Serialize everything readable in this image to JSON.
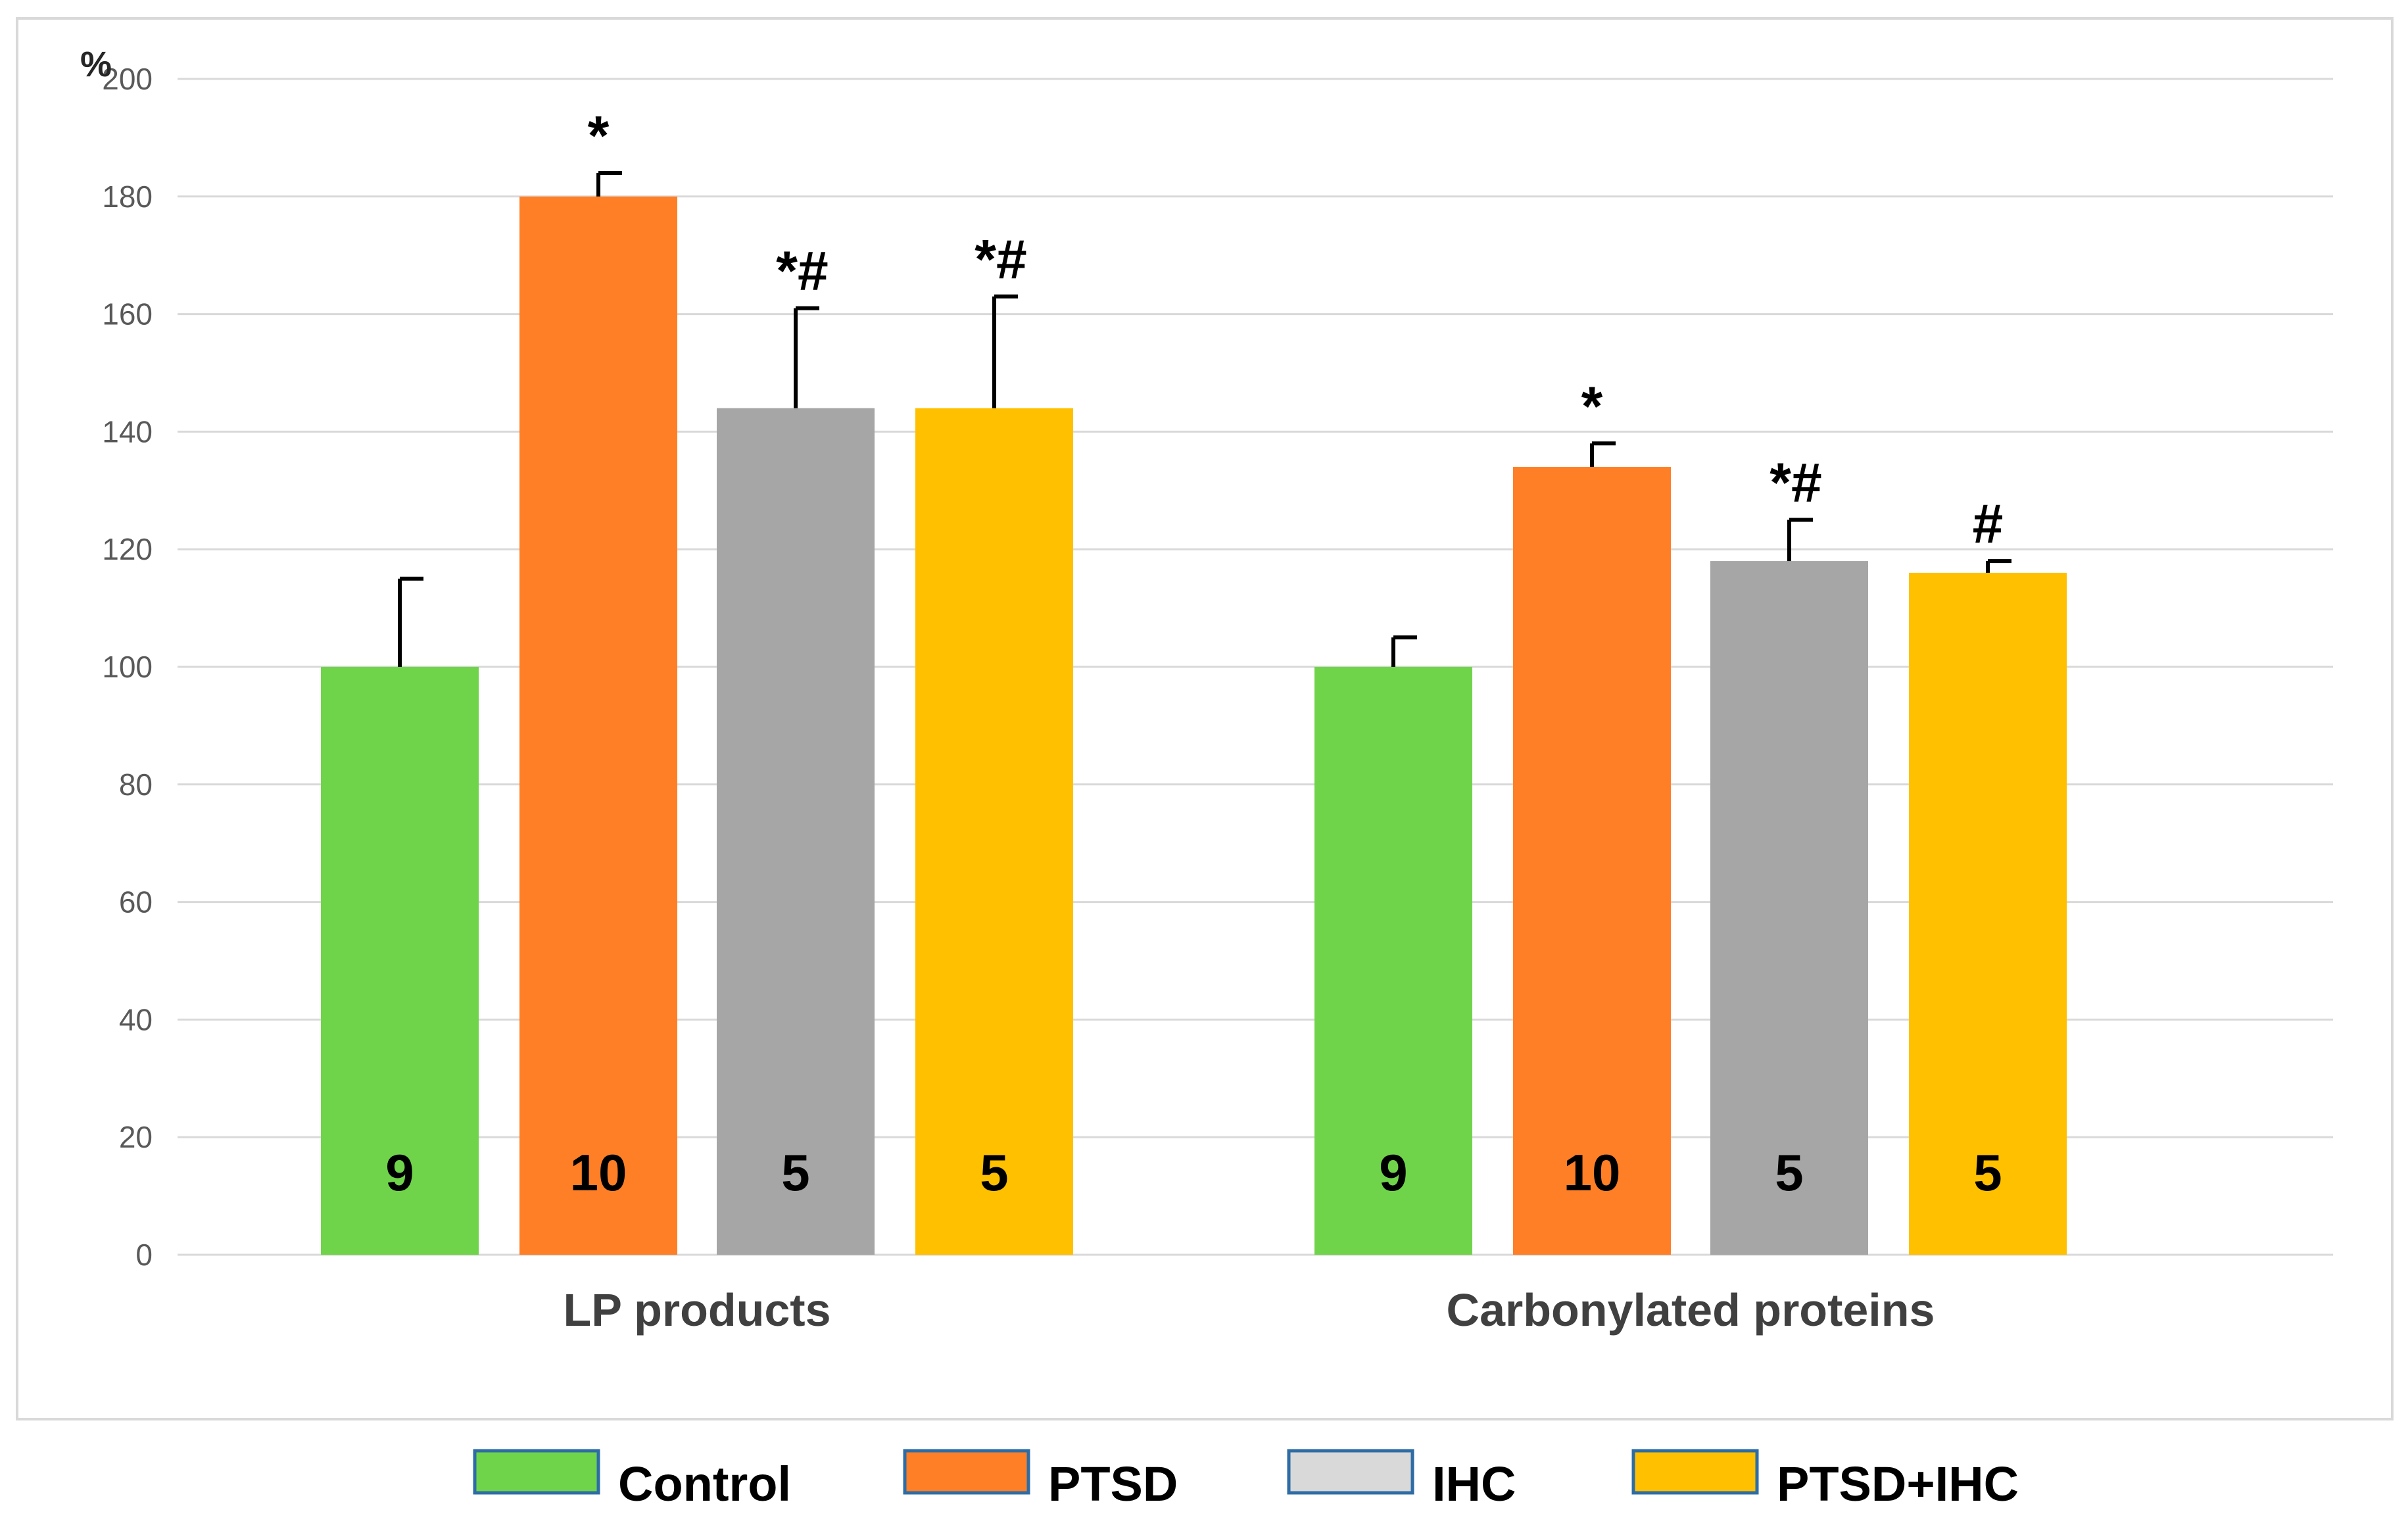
{
  "chart_data": {
    "type": "bar",
    "y_unit_label": "%",
    "categories": [
      "LP products",
      "Carbonylated proteins"
    ],
    "ylim": [
      0,
      200
    ],
    "y_ticks": [
      0,
      20,
      40,
      60,
      80,
      100,
      120,
      140,
      160,
      180,
      200
    ],
    "grid": true,
    "legend_position": "bottom",
    "series": [
      {
        "name": "Control",
        "color": "#70d44b",
        "values": [
          100,
          100
        ],
        "error_plus": [
          15,
          5
        ],
        "n_labels": [
          "9",
          "9"
        ],
        "significance": [
          "",
          ""
        ]
      },
      {
        "name": "PTSD",
        "color": "#ff7f27",
        "values": [
          180,
          134
        ],
        "error_plus": [
          4,
          4
        ],
        "n_labels": [
          "10",
          "10"
        ],
        "significance": [
          "*",
          "*"
        ]
      },
      {
        "name": "IHC",
        "color": "#a6a6a6",
        "legend_color": "#d9d9d9",
        "values": [
          144,
          118
        ],
        "error_plus": [
          17,
          7
        ],
        "n_labels": [
          "5",
          "5"
        ],
        "significance": [
          "*#",
          "*#"
        ]
      },
      {
        "name": "PTSD+IHC",
        "color": "#ffc000",
        "values": [
          144,
          116
        ],
        "error_plus": [
          19,
          2
        ],
        "n_labels": [
          "5",
          "5"
        ],
        "significance": [
          "*#",
          "#"
        ]
      }
    ]
  }
}
